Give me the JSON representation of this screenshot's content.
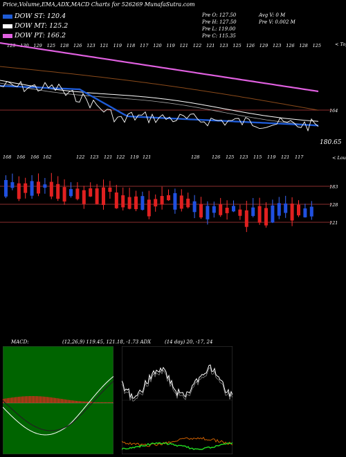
{
  "title": "Price,Volume,EMA,ADX,MACD Charts for 526269 MunafaSutra.com",
  "legend": [
    {
      "label": "DOW ST: 120.4",
      "color": "#1e5bd6"
    },
    {
      "label": "DOW MT: 125.2",
      "color": "#ffffff"
    },
    {
      "label": "DOW PT: 166.2",
      "color": "#e060e0"
    }
  ],
  "ohlc": {
    "open": "Pre   O: 127.50",
    "high": "Pre   H: 127.50",
    "low": "Pre   L: 119.00",
    "close": "Pre   C: 115.35",
    "avg_volume": "Avg V: 0   M",
    "prev_volume": "Pre   V: 0.002   M"
  },
  "panels": {
    "top_tag": "< Topo",
    "volume_tag": "< Louer",
    "macd_label": "MACD:",
    "macd_values": "(12,26,9) 119.45,  121.18,  -1.73 ADX",
    "adx_values": "(14   day) 20,  -17,  24"
  },
  "chart_data": [
    {
      "type": "line",
      "name": "price-ema-panel",
      "ylabels": [
        "164",
        "180.65"
      ],
      "top_ticks": [
        "129",
        "130",
        "129",
        "125",
        "128",
        "126",
        "123",
        "121",
        "119",
        "118",
        "117",
        "120",
        "119",
        "121",
        "122",
        "121",
        "123",
        "125",
        "126",
        "129",
        "123",
        "126",
        "128",
        "125"
      ],
      "series": [
        {
          "name": "DOW PT",
          "color": "#e060e0",
          "values": [
            166.2,
            166.1,
            166.0,
            165.9,
            165.8,
            165.7,
            165.6,
            165.5,
            165.4,
            165.3,
            165.2,
            165.1,
            165.0,
            164.9,
            164.8,
            164.7,
            164.6,
            164.5,
            164.4,
            164.3
          ]
        },
        {
          "name": "DOW MT",
          "color": "#ffffff",
          "values": [
            131,
            130,
            129,
            128,
            127.5,
            127,
            126.6,
            126.2,
            125.9,
            125.7,
            125.5,
            125.4,
            125.3,
            125.3,
            125.2,
            125.2,
            125.2,
            125.2,
            125.2,
            125.2
          ]
        },
        {
          "name": "DOW ST",
          "color": "#1e5bd6",
          "values": [
            128,
            129,
            130,
            127,
            124,
            122,
            121,
            120.5,
            121,
            121.5,
            121.2,
            121,
            120.8,
            120.6,
            120.5,
            120.4,
            120.4,
            120.4,
            120.4,
            120.4
          ]
        }
      ]
    },
    {
      "type": "bar",
      "name": "candles-panel",
      "ylabels": [
        "183",
        "128",
        "121"
      ],
      "top_ticks": [
        "168",
        "166",
        "166",
        "162",
        "122",
        "123",
        "121",
        "122",
        "119",
        "121",
        "128",
        "126",
        "125",
        "123",
        "115",
        "119",
        "121",
        "117"
      ]
    },
    {
      "type": "bar",
      "name": "macd-panel"
    },
    {
      "type": "line",
      "name": "adx-panel"
    }
  ]
}
